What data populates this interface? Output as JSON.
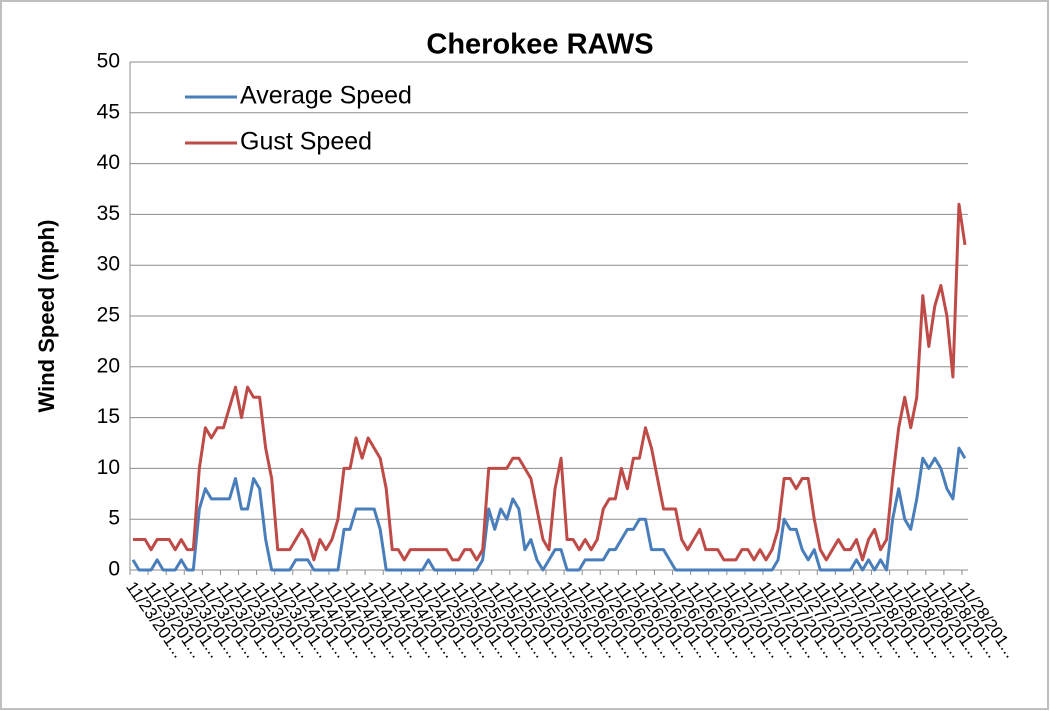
{
  "chart_data": {
    "type": "line",
    "title": "Cherokee RAWS",
    "y_label": "Wind Speed (mph)",
    "categories": [
      "11/23/201...",
      null,
      null,
      "11/23/201...",
      null,
      null,
      "11/23/201...",
      null,
      null,
      "11/23/201...",
      null,
      null,
      "11/23/201...",
      null,
      null,
      "11/23/201...",
      null,
      null,
      "11/23/201...",
      null,
      null,
      "11/23/201...",
      null,
      null,
      "11/23/201...",
      null,
      null,
      "11/24/201...",
      null,
      null,
      "11/24/201...",
      null,
      null,
      "11/24/201...",
      null,
      null,
      "11/24/201...",
      null,
      null,
      "11/24/201...",
      null,
      null,
      "11/24/201...",
      null,
      null,
      "11/24/201...",
      null,
      null,
      "11/24/201...",
      null,
      null,
      "11/25/201...",
      null,
      null,
      "11/25/201...",
      null,
      null,
      "11/25/201...",
      null,
      null,
      "11/25/201...",
      null,
      null,
      "11/25/201...",
      null,
      null,
      "11/25/201...",
      null,
      null,
      "11/25/201...",
      null,
      null,
      "11/25/201...",
      null,
      null,
      "11/26/201...",
      null,
      null,
      "11/26/201...",
      null,
      null,
      "11/26/201...",
      null,
      null,
      "11/26/201...",
      null,
      null,
      "11/26/201...",
      null,
      null,
      "11/26/201...",
      null,
      null,
      "11/26/201...",
      null,
      null,
      "11/26/201...",
      null,
      null,
      "11/27/201...",
      null,
      null,
      "11/27/201...",
      null,
      null,
      "11/27/201...",
      null,
      null,
      "11/27/201...",
      null,
      null,
      "11/27/201...",
      null,
      null,
      "11/27/201...",
      null,
      null,
      "11/27/201...",
      null,
      null,
      "11/27/201...",
      null,
      null,
      "11/28/201...",
      null,
      null,
      "11/28/201...",
      null,
      null,
      "11/28/201...",
      null,
      null,
      "11/28/201...",
      null,
      null,
      "11/28/201...",
      null,
      null,
      "11/28/201..."
    ],
    "series": [
      {
        "name": "Average Speed",
        "color": "#4a7ebb",
        "values": [
          1,
          0,
          0,
          0,
          1,
          0,
          0,
          0,
          1,
          0,
          0,
          6,
          8,
          7,
          7,
          7,
          7,
          9,
          6,
          6,
          9,
          8,
          3,
          0,
          0,
          0,
          0,
          1,
          1,
          1,
          0,
          0,
          0,
          0,
          0,
          4,
          4,
          6,
          6,
          6,
          6,
          4,
          0,
          0,
          0,
          0,
          0,
          0,
          0,
          1,
          0,
          0,
          0,
          0,
          0,
          0,
          0,
          0,
          1,
          6,
          4,
          6,
          5,
          7,
          6,
          2,
          3,
          1,
          0,
          1,
          2,
          2,
          0,
          0,
          0,
          1,
          1,
          1,
          1,
          2,
          2,
          3,
          4,
          4,
          5,
          5,
          2,
          2,
          2,
          1,
          0,
          0,
          0,
          0,
          0,
          0,
          0,
          0,
          0,
          0,
          0,
          0,
          0,
          0,
          0,
          0,
          0,
          1,
          5,
          4,
          4,
          2,
          1,
          2,
          0,
          0,
          0,
          0,
          0,
          0,
          1,
          0,
          1,
          0,
          1,
          0,
          5,
          8,
          5,
          4,
          7,
          11,
          10,
          11,
          10,
          8,
          7,
          12,
          11
        ]
      },
      {
        "name": "Gust Speed",
        "color": "#be4b48",
        "values": [
          3,
          3,
          3,
          2,
          3,
          3,
          3,
          2,
          3,
          2,
          2,
          10,
          14,
          13,
          14,
          14,
          16,
          18,
          15,
          18,
          17,
          17,
          12,
          9,
          2,
          2,
          2,
          3,
          4,
          3,
          1,
          3,
          2,
          3,
          5,
          10,
          10,
          13,
          11,
          13,
          12,
          11,
          8,
          2,
          2,
          1,
          2,
          2,
          2,
          2,
          2,
          2,
          2,
          1,
          1,
          2,
          2,
          1,
          2,
          10,
          10,
          10,
          10,
          11,
          11,
          10,
          9,
          6,
          3,
          2,
          8,
          11,
          3,
          3,
          2,
          3,
          2,
          3,
          6,
          7,
          7,
          10,
          8,
          11,
          11,
          14,
          12,
          9,
          6,
          6,
          6,
          3,
          2,
          3,
          4,
          2,
          2,
          2,
          1,
          1,
          1,
          2,
          2,
          1,
          2,
          1,
          2,
          4,
          9,
          9,
          8,
          9,
          9,
          5,
          2,
          1,
          2,
          3,
          2,
          2,
          3,
          1,
          3,
          4,
          2,
          3,
          9,
          14,
          17,
          14,
          17,
          27,
          22,
          26,
          28,
          25,
          19,
          36,
          32
        ]
      }
    ],
    "ylim": [
      0,
      50
    ],
    "yticks": [
      0,
      5,
      10,
      15,
      20,
      25,
      30,
      35,
      40,
      45,
      50
    ],
    "grid": true,
    "legend": "top-left"
  }
}
